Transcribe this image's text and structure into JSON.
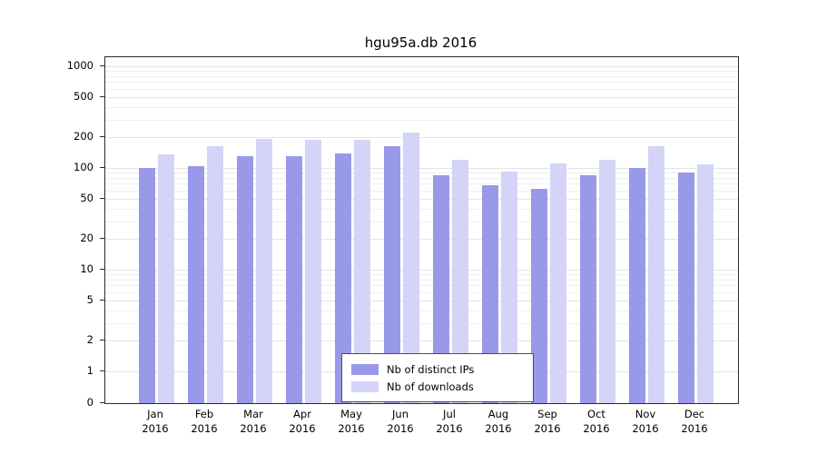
{
  "title": "hgu95a.db 2016",
  "colors": {
    "ips": "#9999ea",
    "downloads": "#d4d4f8",
    "grid_minor": "#efefef",
    "grid_major": "#e4e4e4",
    "frame": "#2b2b2b"
  },
  "legend": {
    "items": [
      {
        "label": "Nb of distinct IPs",
        "series": "ips"
      },
      {
        "label": "Nb of downloads",
        "series": "downloads"
      }
    ]
  },
  "chart_data": {
    "type": "bar",
    "title": "hgu95a.db 2016",
    "categories": [
      "Jan 2016",
      "Feb 2016",
      "Mar 2016",
      "Apr 2016",
      "May 2016",
      "Jun 2016",
      "Jul 2016",
      "Aug 2016",
      "Sep 2016",
      "Oct 2016",
      "Nov 2016",
      "Dec 2016"
    ],
    "series": [
      {
        "name": "Nb of distinct IPs",
        "color_key": "ips",
        "values": [
          100,
          105,
          130,
          130,
          140,
          165,
          85,
          68,
          63,
          85,
          100,
          90
        ]
      },
      {
        "name": "Nb of downloads",
        "color_key": "downloads",
        "values": [
          135,
          165,
          195,
          190,
          190,
          225,
          120,
          92,
          110,
          120,
          165,
          108
        ]
      }
    ],
    "xlabel": "",
    "ylabel": "",
    "yscale": "log",
    "yticks": [
      0,
      1,
      2,
      5,
      10,
      20,
      50,
      100,
      200,
      500,
      1000
    ],
    "ylim": [
      0,
      1000
    ],
    "grid": true,
    "legend_position": "inside-bottom-center"
  }
}
